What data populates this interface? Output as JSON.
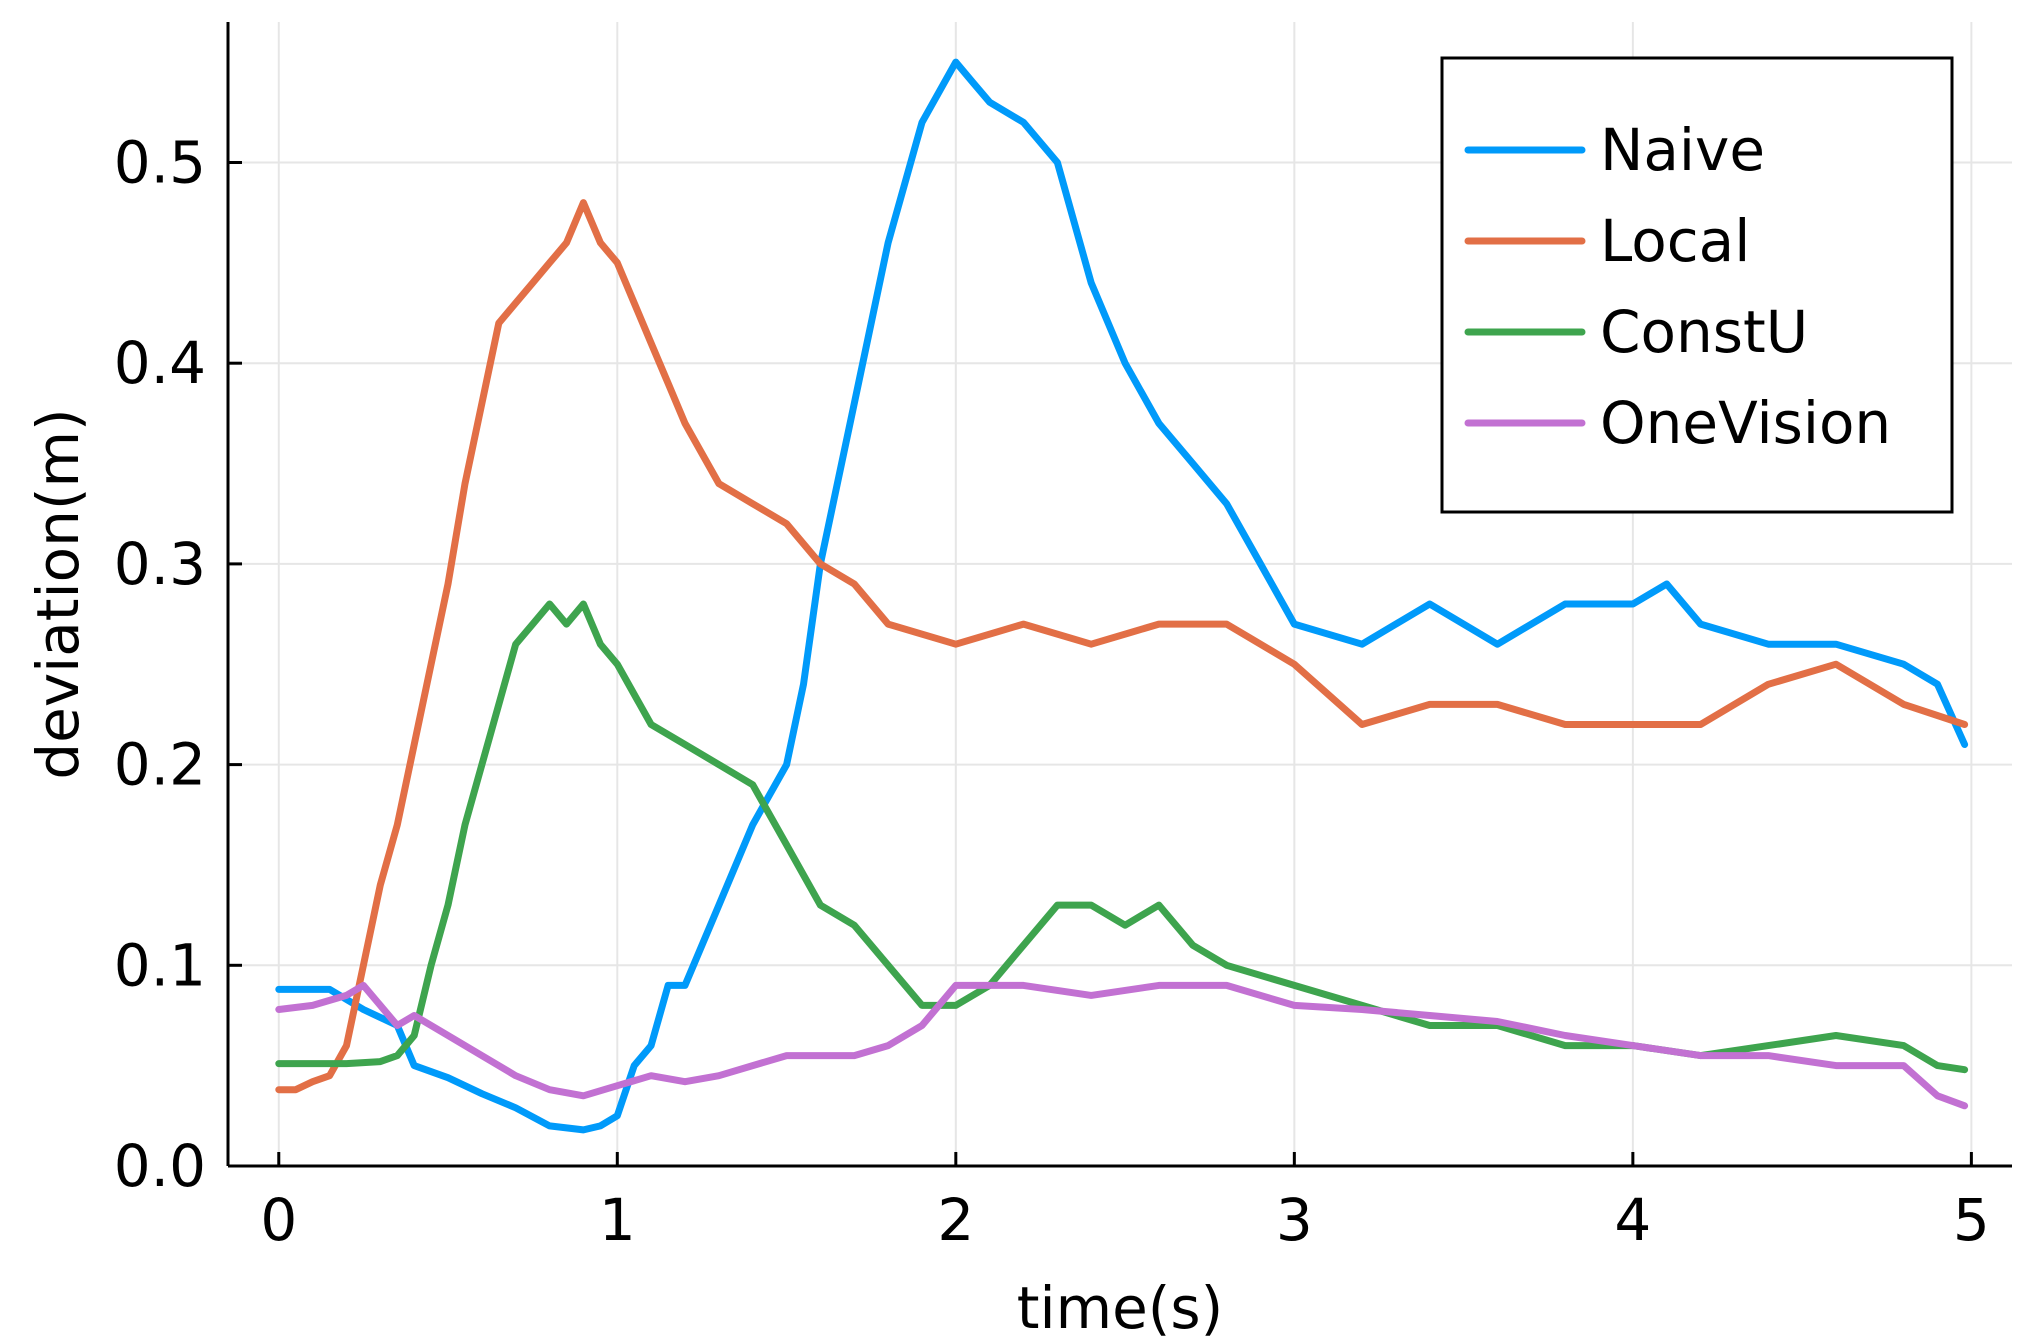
{
  "chart_data": {
    "type": "line",
    "title": "",
    "xlabel": "time(s)",
    "ylabel": "deviation(m)",
    "xlim": [
      -0.15,
      5.12
    ],
    "ylim": [
      0.0,
      0.57
    ],
    "xticks": [
      0,
      1,
      2,
      3,
      4,
      5
    ],
    "xtick_labels": [
      "0",
      "1",
      "2",
      "3",
      "4",
      "5"
    ],
    "yticks": [
      0.0,
      0.1,
      0.2,
      0.3,
      0.4,
      0.5
    ],
    "ytick_labels": [
      "0.0",
      "0.1",
      "0.2",
      "0.3",
      "0.4",
      "0.5"
    ],
    "grid": true,
    "legend_position": "top-right",
    "series": [
      {
        "name": "Naive",
        "color": "#009AFA",
        "x": [
          0,
          0.15,
          0.25,
          0.35,
          0.4,
          0.5,
          0.6,
          0.7,
          0.8,
          0.9,
          0.95,
          1.0,
          1.05,
          1.1,
          1.15,
          1.2,
          1.3,
          1.4,
          1.5,
          1.55,
          1.6,
          1.7,
          1.8,
          1.9,
          2.0,
          2.05,
          2.1,
          2.2,
          2.3,
          2.4,
          2.5,
          2.6,
          2.7,
          2.8,
          2.9,
          3.0,
          3.2,
          3.4,
          3.6,
          3.8,
          4.0,
          4.1,
          4.2,
          4.4,
          4.6,
          4.8,
          4.9,
          4.98
        ],
        "y": [
          0.088,
          0.088,
          0.078,
          0.07,
          0.05,
          0.044,
          0.036,
          0.029,
          0.02,
          0.018,
          0.02,
          0.025,
          0.05,
          0.06,
          0.09,
          0.09,
          0.13,
          0.17,
          0.2,
          0.24,
          0.3,
          0.38,
          0.46,
          0.52,
          0.55,
          0.54,
          0.53,
          0.52,
          0.5,
          0.44,
          0.4,
          0.37,
          0.35,
          0.33,
          0.3,
          0.27,
          0.26,
          0.28,
          0.26,
          0.28,
          0.28,
          0.29,
          0.27,
          0.26,
          0.26,
          0.25,
          0.24,
          0.21
        ]
      },
      {
        "name": "Local",
        "color": "#E26F46",
        "x": [
          0,
          0.05,
          0.1,
          0.15,
          0.2,
          0.25,
          0.3,
          0.35,
          0.4,
          0.45,
          0.5,
          0.55,
          0.6,
          0.65,
          0.7,
          0.75,
          0.8,
          0.85,
          0.9,
          0.95,
          1.0,
          1.05,
          1.1,
          1.15,
          1.2,
          1.3,
          1.4,
          1.5,
          1.6,
          1.7,
          1.8,
          2.0,
          2.2,
          2.4,
          2.6,
          2.8,
          3.0,
          3.2,
          3.4,
          3.6,
          3.8,
          4.0,
          4.2,
          4.4,
          4.6,
          4.8,
          4.98
        ],
        "y": [
          0.038,
          0.038,
          0.042,
          0.045,
          0.06,
          0.1,
          0.14,
          0.17,
          0.21,
          0.25,
          0.29,
          0.34,
          0.38,
          0.42,
          0.43,
          0.44,
          0.45,
          0.46,
          0.48,
          0.46,
          0.45,
          0.43,
          0.41,
          0.39,
          0.37,
          0.34,
          0.33,
          0.32,
          0.3,
          0.29,
          0.27,
          0.26,
          0.27,
          0.26,
          0.27,
          0.27,
          0.25,
          0.22,
          0.23,
          0.23,
          0.22,
          0.22,
          0.22,
          0.24,
          0.25,
          0.23,
          0.22
        ]
      },
      {
        "name": "ConstU",
        "color": "#3EA44E",
        "x": [
          0,
          0.1,
          0.2,
          0.3,
          0.35,
          0.4,
          0.45,
          0.5,
          0.55,
          0.6,
          0.65,
          0.7,
          0.75,
          0.8,
          0.85,
          0.9,
          0.95,
          1.0,
          1.1,
          1.2,
          1.3,
          1.4,
          1.5,
          1.6,
          1.7,
          1.8,
          1.9,
          2.0,
          2.1,
          2.2,
          2.3,
          2.4,
          2.5,
          2.6,
          2.7,
          2.8,
          3.0,
          3.2,
          3.4,
          3.6,
          3.8,
          4.0,
          4.2,
          4.4,
          4.6,
          4.8,
          4.9,
          4.98
        ],
        "y": [
          0.051,
          0.051,
          0.051,
          0.052,
          0.055,
          0.065,
          0.1,
          0.13,
          0.17,
          0.2,
          0.23,
          0.26,
          0.27,
          0.28,
          0.27,
          0.28,
          0.26,
          0.25,
          0.22,
          0.21,
          0.2,
          0.19,
          0.16,
          0.13,
          0.12,
          0.1,
          0.08,
          0.08,
          0.09,
          0.11,
          0.13,
          0.13,
          0.12,
          0.13,
          0.11,
          0.1,
          0.09,
          0.08,
          0.07,
          0.07,
          0.06,
          0.06,
          0.055,
          0.06,
          0.065,
          0.06,
          0.05,
          0.048
        ]
      },
      {
        "name": "OneVision",
        "color": "#C271D2",
        "x": [
          0,
          0.1,
          0.2,
          0.25,
          0.3,
          0.35,
          0.4,
          0.5,
          0.6,
          0.7,
          0.8,
          0.9,
          1.0,
          1.1,
          1.2,
          1.3,
          1.4,
          1.5,
          1.6,
          1.7,
          1.8,
          1.9,
          2.0,
          2.2,
          2.4,
          2.6,
          2.8,
          3.0,
          3.2,
          3.4,
          3.6,
          3.8,
          4.0,
          4.2,
          4.4,
          4.6,
          4.8,
          4.9,
          4.98
        ],
        "y": [
          0.078,
          0.08,
          0.085,
          0.09,
          0.08,
          0.07,
          0.075,
          0.065,
          0.055,
          0.045,
          0.038,
          0.035,
          0.04,
          0.045,
          0.042,
          0.045,
          0.05,
          0.055,
          0.055,
          0.055,
          0.06,
          0.07,
          0.09,
          0.09,
          0.085,
          0.09,
          0.09,
          0.08,
          0.078,
          0.075,
          0.072,
          0.065,
          0.06,
          0.055,
          0.055,
          0.05,
          0.05,
          0.035,
          0.03
        ]
      }
    ]
  }
}
